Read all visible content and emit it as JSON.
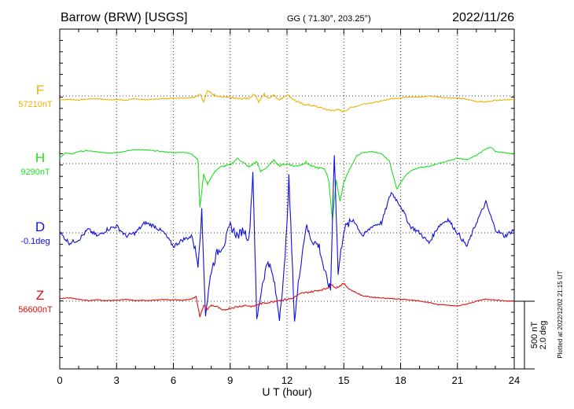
{
  "header": {
    "station": "Barrow (BRW)  [USGS]",
    "geo": "GG ( 71.30°, 203.25°)",
    "date": "2022/11/26"
  },
  "footer": {
    "plotted": "Plotted at 2022/12/02 21:15 UT"
  },
  "scale": {
    "nt": "500 nT",
    "deg": "2.0 deg"
  },
  "chart_data": {
    "type": "line",
    "xlabel": "U T (hour)",
    "xlim": [
      0,
      24
    ],
    "x_ticks": [
      0,
      3,
      6,
      9,
      12,
      15,
      18,
      21,
      24
    ],
    "x_tick_labels": [
      "0",
      "3",
      "6",
      "9",
      "12",
      "15",
      "18",
      "21",
      "24"
    ],
    "grid": true,
    "grid_style": "dotted",
    "scale_bar": {
      "nT": 500,
      "deg": 2.0
    },
    "series": [
      {
        "name": "F",
        "baseline_label": "57210nT",
        "color": "#f0b000",
        "baseline_value": 57210,
        "unit": "nT",
        "points": [
          [
            0,
            -28
          ],
          [
            0.5,
            -25
          ],
          [
            1,
            -30
          ],
          [
            1.5,
            -22
          ],
          [
            2,
            -20
          ],
          [
            2.5,
            -28
          ],
          [
            3,
            -26
          ],
          [
            3.5,
            -32
          ],
          [
            4,
            -20
          ],
          [
            4.5,
            -28
          ],
          [
            5,
            -24
          ],
          [
            5.5,
            -20
          ],
          [
            6,
            -16
          ],
          [
            6.5,
            -14
          ],
          [
            7,
            -12
          ],
          [
            7.2,
            -8
          ],
          [
            7.4,
            18
          ],
          [
            7.6,
            -40
          ],
          [
            7.8,
            40
          ],
          [
            8,
            20
          ],
          [
            8.3,
            -5
          ],
          [
            8.7,
            -10
          ],
          [
            9,
            -12
          ],
          [
            9.5,
            -22
          ],
          [
            10,
            -15
          ],
          [
            10.3,
            15
          ],
          [
            10.5,
            -45
          ],
          [
            10.8,
            15
          ],
          [
            11,
            -20
          ],
          [
            11.3,
            10
          ],
          [
            11.6,
            -30
          ],
          [
            12,
            10
          ],
          [
            12.3,
            -20
          ],
          [
            12.5,
            -40
          ],
          [
            12.8,
            -60
          ],
          [
            13.3,
            -70
          ],
          [
            14,
            -95
          ],
          [
            14.3,
            -110
          ],
          [
            14.6,
            -100
          ],
          [
            15,
            -115
          ],
          [
            15.3,
            -90
          ],
          [
            15.7,
            -75
          ],
          [
            16,
            -60
          ],
          [
            16.5,
            -50
          ],
          [
            17,
            -38
          ],
          [
            17.5,
            -20
          ],
          [
            18,
            -15
          ],
          [
            18.5,
            -5
          ],
          [
            19,
            -10
          ],
          [
            19.5,
            0
          ],
          [
            20,
            -8
          ],
          [
            20.5,
            -14
          ],
          [
            21,
            -16
          ],
          [
            21.5,
            -25
          ],
          [
            22,
            -40
          ],
          [
            22.5,
            -45
          ],
          [
            23,
            -32
          ],
          [
            23.5,
            -28
          ],
          [
            24,
            -25
          ]
        ]
      },
      {
        "name": "H",
        "baseline_label": "9290nT",
        "color": "#20e020",
        "baseline_value": 9290,
        "unit": "nT",
        "points": [
          [
            0,
            40
          ],
          [
            0.3,
            80
          ],
          [
            0.6,
            70
          ],
          [
            1,
            90
          ],
          [
            1.5,
            95
          ],
          [
            2,
            85
          ],
          [
            2.5,
            80
          ],
          [
            3,
            82
          ],
          [
            3.5,
            92
          ],
          [
            4,
            105
          ],
          [
            4.5,
            100
          ],
          [
            5,
            95
          ],
          [
            5.5,
            88
          ],
          [
            6,
            80
          ],
          [
            6.5,
            85
          ],
          [
            7,
            70
          ],
          [
            7.3,
            30
          ],
          [
            7.4,
            -330
          ],
          [
            7.6,
            -80
          ],
          [
            7.8,
            -150
          ],
          [
            8,
            -100
          ],
          [
            8.3,
            -40
          ],
          [
            8.6,
            -20
          ],
          [
            9,
            -10
          ],
          [
            9.4,
            40
          ],
          [
            9.8,
            -5
          ],
          [
            10,
            -25
          ],
          [
            10.4,
            15
          ],
          [
            10.6,
            -60
          ],
          [
            11,
            -20
          ],
          [
            11.3,
            25
          ],
          [
            11.6,
            -15
          ],
          [
            12,
            0
          ],
          [
            12.4,
            -20
          ],
          [
            12.7,
            -10
          ],
          [
            13,
            10
          ],
          [
            13.3,
            -20
          ],
          [
            13.6,
            -30
          ],
          [
            14,
            -40
          ],
          [
            14.2,
            -120
          ],
          [
            14.4,
            -420
          ],
          [
            14.6,
            -120
          ],
          [
            14.8,
            -280
          ],
          [
            15,
            -140
          ],
          [
            15.3,
            -40
          ],
          [
            15.7,
            60
          ],
          [
            16,
            80
          ],
          [
            16.5,
            90
          ],
          [
            17,
            70
          ],
          [
            17.4,
            20
          ],
          [
            17.8,
            -190
          ],
          [
            18,
            -140
          ],
          [
            18.3,
            -80
          ],
          [
            18.6,
            -50
          ],
          [
            19,
            -30
          ],
          [
            19.5,
            -20
          ],
          [
            20,
            0
          ],
          [
            20.5,
            20
          ],
          [
            21,
            40
          ],
          [
            21.5,
            30
          ],
          [
            22,
            60
          ],
          [
            22.5,
            110
          ],
          [
            22.8,
            120
          ],
          [
            23,
            90
          ],
          [
            23.5,
            80
          ],
          [
            24,
            70
          ]
        ]
      },
      {
        "name": "D",
        "baseline_label": "-0.1deg",
        "color": "#1010d8",
        "baseline_value": -0.1,
        "unit": "deg",
        "points": [
          [
            0,
            0
          ],
          [
            0.5,
            -0.3
          ],
          [
            1,
            -0.2
          ],
          [
            1.5,
            0.1
          ],
          [
            2,
            -0.1
          ],
          [
            2.5,
            0.1
          ],
          [
            3,
            0.2
          ],
          [
            3.5,
            -0.1
          ],
          [
            4,
            0
          ],
          [
            4.5,
            0.3
          ],
          [
            5,
            0.2
          ],
          [
            5.5,
            0
          ],
          [
            6,
            -0.4
          ],
          [
            6.5,
            -0.2
          ],
          [
            7,
            -0.1
          ],
          [
            7.3,
            -0.9
          ],
          [
            7.5,
            0.6
          ],
          [
            7.7,
            -2.4
          ],
          [
            8,
            -1.1
          ],
          [
            8.3,
            -0.6
          ],
          [
            8.7,
            -0.3
          ],
          [
            9,
            0.2
          ],
          [
            9.4,
            -0.1
          ],
          [
            9.7,
            0.1
          ],
          [
            10,
            -0.2
          ],
          [
            10.2,
            1.8
          ],
          [
            10.4,
            -2.6
          ],
          [
            10.7,
            -1.5
          ],
          [
            11,
            -0.8
          ],
          [
            11.3,
            -1.4
          ],
          [
            11.6,
            -2.5
          ],
          [
            11.9,
            -0.8
          ],
          [
            12.1,
            1.6
          ],
          [
            12.4,
            -2.6
          ],
          [
            12.7,
            -1.0
          ],
          [
            13,
            0.2
          ],
          [
            13.3,
            -0.2
          ],
          [
            13.7,
            -0.4
          ],
          [
            14,
            -1.2
          ],
          [
            14.3,
            -1.7
          ],
          [
            14.5,
            2.4
          ],
          [
            14.7,
            -1.2
          ],
          [
            15,
            0.1
          ],
          [
            15.5,
            0.4
          ],
          [
            16,
            -0.1
          ],
          [
            16.5,
            0.2
          ],
          [
            17,
            0.3
          ],
          [
            17.5,
            1.2
          ],
          [
            18,
            0.8
          ],
          [
            18.5,
            0.2
          ],
          [
            19,
            0
          ],
          [
            19.5,
            -0.3
          ],
          [
            20,
            0.2
          ],
          [
            20.5,
            0.4
          ],
          [
            21,
            0
          ],
          [
            21.5,
            -0.4
          ],
          [
            22,
            0.3
          ],
          [
            22.5,
            0.9
          ],
          [
            23,
            0.1
          ],
          [
            23.5,
            -0.1
          ],
          [
            24,
            0.1
          ]
        ]
      },
      {
        "name": "Z",
        "baseline_label": "56600nT",
        "color": "#e01010",
        "baseline_value": 56600,
        "unit": "nT",
        "points": [
          [
            0,
            20
          ],
          [
            0.5,
            25
          ],
          [
            1,
            15
          ],
          [
            1.5,
            5
          ],
          [
            2,
            10
          ],
          [
            2.5,
            5
          ],
          [
            3,
            8
          ],
          [
            3.5,
            12
          ],
          [
            4,
            5
          ],
          [
            4.5,
            6
          ],
          [
            5,
            8
          ],
          [
            5.5,
            12
          ],
          [
            6,
            10
          ],
          [
            6.5,
            8
          ],
          [
            7,
            18
          ],
          [
            7.2,
            40
          ],
          [
            7.4,
            -120
          ],
          [
            7.6,
            -30
          ],
          [
            7.8,
            -60
          ],
          [
            8,
            -30
          ],
          [
            8.3,
            -40
          ],
          [
            8.6,
            -70
          ],
          [
            9,
            -50
          ],
          [
            9.4,
            -40
          ],
          [
            9.8,
            -30
          ],
          [
            10.2,
            -40
          ],
          [
            10.5,
            -20
          ],
          [
            11,
            -10
          ],
          [
            11.5,
            5
          ],
          [
            12,
            15
          ],
          [
            12.3,
            20
          ],
          [
            12.5,
            40
          ],
          [
            12.8,
            60
          ],
          [
            13.3,
            70
          ],
          [
            14,
            90
          ],
          [
            14.4,
            120
          ],
          [
            14.6,
            100
          ],
          [
            15,
            130
          ],
          [
            15.3,
            90
          ],
          [
            15.7,
            60
          ],
          [
            16,
            40
          ],
          [
            16.5,
            30
          ],
          [
            17,
            25
          ],
          [
            17.5,
            20
          ],
          [
            18,
            15
          ],
          [
            18.5,
            10
          ],
          [
            19,
            2
          ],
          [
            19.5,
            -10
          ],
          [
            20,
            -25
          ],
          [
            20.5,
            -30
          ],
          [
            21,
            -35
          ],
          [
            21.5,
            -20
          ],
          [
            22,
            0
          ],
          [
            22.5,
            15
          ],
          [
            23,
            10
          ],
          [
            23.5,
            2
          ],
          [
            24,
            0
          ]
        ]
      }
    ]
  }
}
